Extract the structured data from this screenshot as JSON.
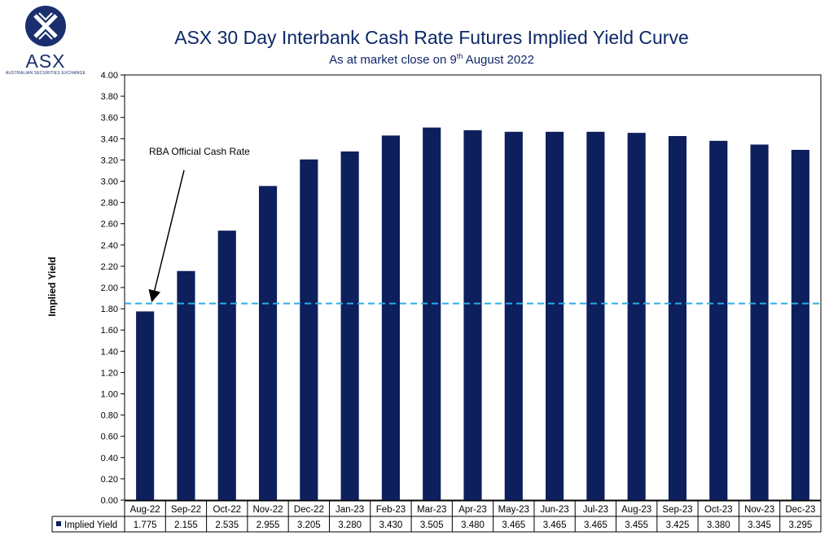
{
  "header": {
    "logo_text": "ASX",
    "logo_subtext": "AUSTRALIAN SECURITIES EXCHANGE",
    "title": "ASX 30 Day Interbank Cash Rate Futures Implied Yield Curve",
    "subtitle_prefix": "As at market close on 9",
    "subtitle_sup": "th",
    "subtitle_suffix": " August 2022"
  },
  "colors": {
    "bar": "#0d1f5c",
    "reference_line": "#29aee8",
    "title": "#0d2868"
  },
  "chart_data": {
    "type": "bar",
    "title": "ASX 30 Day Interbank Cash Rate Futures Implied Yield Curve",
    "subtitle": "As at market close on 9th August 2022",
    "ylabel": "Implied Yield",
    "xlabel": "",
    "ylim": [
      0,
      4.0
    ],
    "ytick_step": 0.2,
    "grid": false,
    "categories": [
      "Aug-22",
      "Sep-22",
      "Oct-22",
      "Nov-22",
      "Dec-22",
      "Jan-23",
      "Feb-23",
      "Mar-23",
      "Apr-23",
      "May-23",
      "Jun-23",
      "Jul-23",
      "Aug-23",
      "Sep-23",
      "Oct-23",
      "Nov-23",
      "Dec-23"
    ],
    "series": [
      {
        "name": "Implied Yield",
        "values": [
          1.775,
          2.155,
          2.535,
          2.955,
          3.205,
          3.28,
          3.43,
          3.505,
          3.48,
          3.465,
          3.465,
          3.465,
          3.455,
          3.425,
          3.38,
          3.345,
          3.295
        ],
        "value_labels": [
          "1.775",
          "2.155",
          "2.535",
          "2.955",
          "3.205",
          "3.280",
          "3.430",
          "3.505",
          "3.480",
          "3.465",
          "3.465",
          "3.465",
          "3.455",
          "3.425",
          "3.380",
          "3.345",
          "3.295"
        ]
      }
    ],
    "reference_line": {
      "label": "RBA Official Cash Rate",
      "value": 1.85,
      "style": "dashed"
    },
    "legend": "data-table-left"
  }
}
